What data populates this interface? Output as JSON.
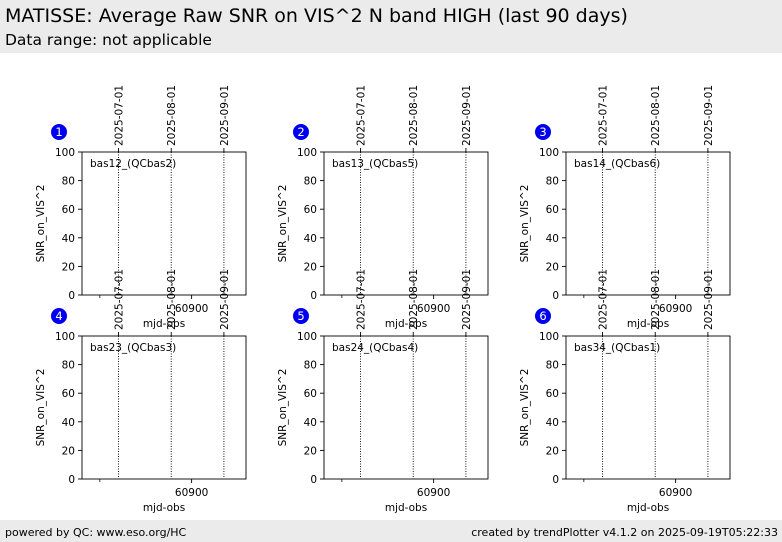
{
  "header": {
    "title": "MATISSE: Average Raw SNR on VIS^2 N band HIGH (last 90 days)",
    "subtitle": "Data range: not applicable"
  },
  "footer": {
    "left": "powered by QC: www.eso.org/HC",
    "right": "created by trendPlotter v4.1.2 on 2025-09-19T05:22:33"
  },
  "colors": {
    "background": "#ffffff",
    "header_band": "#ebebeb",
    "badge": "#0000ee",
    "badge_text": "#ffffff",
    "axes": "#000000"
  },
  "chart_data": [
    {
      "type": "scatter",
      "badge": "1",
      "label": "bas12_(QCbas2)",
      "xlabel": "mjd-obs",
      "ylabel": "SNR_on_VIS^2",
      "ylim": [
        0,
        100
      ],
      "yticks": [
        0,
        20,
        40,
        60,
        80,
        100
      ],
      "xlim": [
        60835.5,
        60932
      ],
      "xticks": [
        60900
      ],
      "xminor": [
        60846
      ],
      "date_markers": [
        {
          "label": "2025-07-01",
          "mjd": 60857
        },
        {
          "label": "2025-08-01",
          "mjd": 60888
        },
        {
          "label": "2025-09-01",
          "mjd": 60919
        }
      ],
      "series": []
    },
    {
      "type": "scatter",
      "badge": "2",
      "label": "bas13_(QCbas5)",
      "xlabel": "mjd-obs",
      "ylabel": "SNR_on_VIS^2",
      "ylim": [
        0,
        100
      ],
      "yticks": [
        0,
        20,
        40,
        60,
        80,
        100
      ],
      "xlim": [
        60835.5,
        60932
      ],
      "xticks": [
        60900
      ],
      "xminor": [
        60846
      ],
      "date_markers": [
        {
          "label": "2025-07-01",
          "mjd": 60857
        },
        {
          "label": "2025-08-01",
          "mjd": 60888
        },
        {
          "label": "2025-09-01",
          "mjd": 60919
        }
      ],
      "series": []
    },
    {
      "type": "scatter",
      "badge": "3",
      "label": "bas14_(QCbas6)",
      "xlabel": "mjd-obs",
      "ylabel": "SNR_on_VIS^2",
      "ylim": [
        0,
        100
      ],
      "yticks": [
        0,
        20,
        40,
        60,
        80,
        100
      ],
      "xlim": [
        60835.5,
        60932
      ],
      "xticks": [
        60900
      ],
      "xminor": [
        60846
      ],
      "date_markers": [
        {
          "label": "2025-07-01",
          "mjd": 60857
        },
        {
          "label": "2025-08-01",
          "mjd": 60888
        },
        {
          "label": "2025-09-01",
          "mjd": 60919
        }
      ],
      "series": []
    },
    {
      "type": "scatter",
      "badge": "4",
      "label": "bas23_(QCbas3)",
      "xlabel": "mjd-obs",
      "ylabel": "SNR_on_VIS^2",
      "ylim": [
        0,
        100
      ],
      "yticks": [
        0,
        20,
        40,
        60,
        80,
        100
      ],
      "xlim": [
        60835.5,
        60932
      ],
      "xticks": [
        60900
      ],
      "xminor": [
        60846
      ],
      "date_markers": [
        {
          "label": "2025-07-01",
          "mjd": 60857
        },
        {
          "label": "2025-08-01",
          "mjd": 60888
        },
        {
          "label": "2025-09-01",
          "mjd": 60919
        }
      ],
      "series": []
    },
    {
      "type": "scatter",
      "badge": "5",
      "label": "bas24_(QCbas4)",
      "xlabel": "mjd-obs",
      "ylabel": "SNR_on_VIS^2",
      "ylim": [
        0,
        100
      ],
      "yticks": [
        0,
        20,
        40,
        60,
        80,
        100
      ],
      "xlim": [
        60835.5,
        60932
      ],
      "xticks": [
        60900
      ],
      "xminor": [
        60846
      ],
      "date_markers": [
        {
          "label": "2025-07-01",
          "mjd": 60857
        },
        {
          "label": "2025-08-01",
          "mjd": 60888
        },
        {
          "label": "2025-09-01",
          "mjd": 60919
        }
      ],
      "series": []
    },
    {
      "type": "scatter",
      "badge": "6",
      "label": "bas34_(QCbas1)",
      "xlabel": "mjd-obs",
      "ylabel": "SNR_on_VIS^2",
      "ylim": [
        0,
        100
      ],
      "yticks": [
        0,
        20,
        40,
        60,
        80,
        100
      ],
      "xlim": [
        60835.5,
        60932
      ],
      "xticks": [
        60900
      ],
      "xminor": [
        60846
      ],
      "date_markers": [
        {
          "label": "2025-07-01",
          "mjd": 60857
        },
        {
          "label": "2025-08-01",
          "mjd": 60888
        },
        {
          "label": "2025-09-01",
          "mjd": 60919
        }
      ],
      "series": []
    }
  ]
}
